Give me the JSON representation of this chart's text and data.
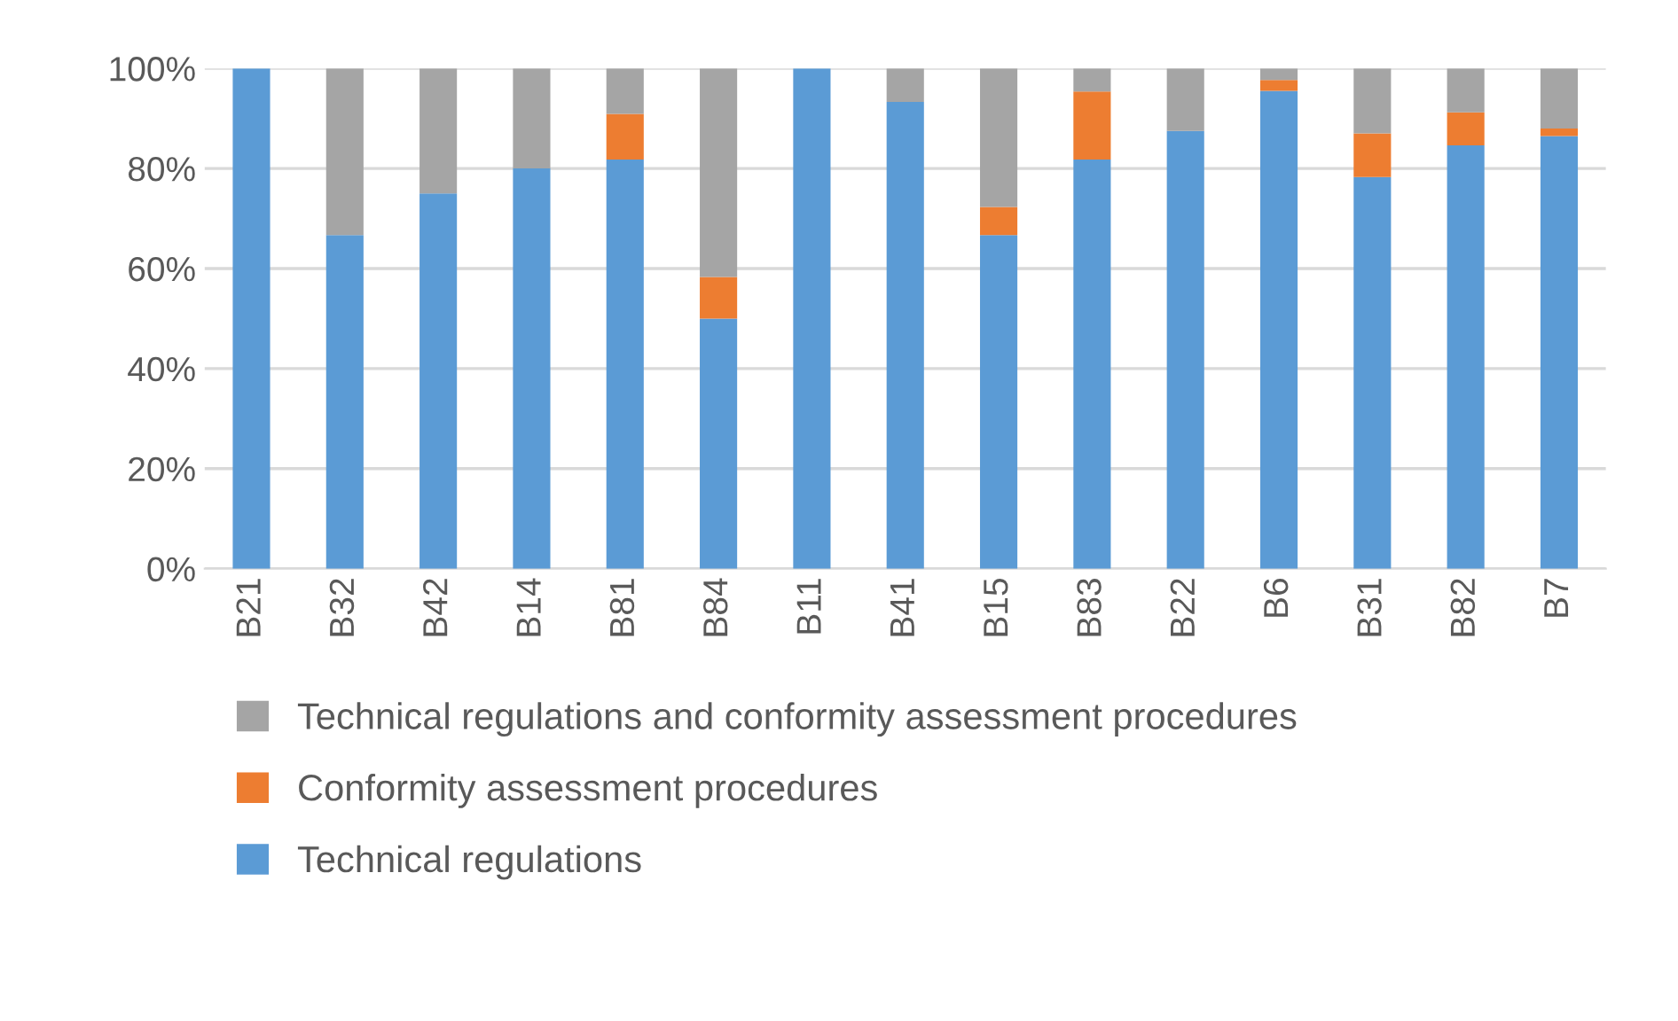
{
  "chart_data": {
    "type": "bar",
    "stacked": true,
    "categories": [
      "B21",
      "B32",
      "B42",
      "B14",
      "B81",
      "B84",
      "B11",
      "B41",
      "B15",
      "B83",
      "B22",
      "B6",
      "B31",
      "B82",
      "B7"
    ],
    "series": [
      {
        "name": "Technical regulations",
        "color": "#5b9bd5",
        "values": [
          100,
          66.7,
          75,
          80,
          81.8,
          50,
          100,
          93.3,
          66.7,
          81.8,
          87.5,
          95.5,
          78.3,
          84.6,
          86.5
        ]
      },
      {
        "name": "Conformity assessment procedures",
        "color": "#ed7d31",
        "values": [
          0,
          0,
          0,
          0,
          9.1,
          8.3,
          0,
          0,
          5.6,
          13.6,
          0,
          2.2,
          8.7,
          6.6,
          1.5
        ]
      },
      {
        "name": "Technical regulations and conformity assessment procedures",
        "color": "#a5a5a5",
        "values": [
          0,
          33.3,
          25,
          20,
          9.1,
          41.7,
          0,
          6.7,
          27.7,
          4.6,
          12.5,
          2.3,
          13,
          8.8,
          12
        ]
      }
    ],
    "ylim": [
      0,
      100
    ],
    "yticks": [
      {
        "value": 0,
        "label": "0%"
      },
      {
        "value": 20,
        "label": "20%"
      },
      {
        "value": 40,
        "label": "40%"
      },
      {
        "value": 60,
        "label": "60%"
      },
      {
        "value": 80,
        "label": "80%"
      },
      {
        "value": 100,
        "label": "100%"
      }
    ],
    "grid": "y",
    "legend": "bottom"
  }
}
